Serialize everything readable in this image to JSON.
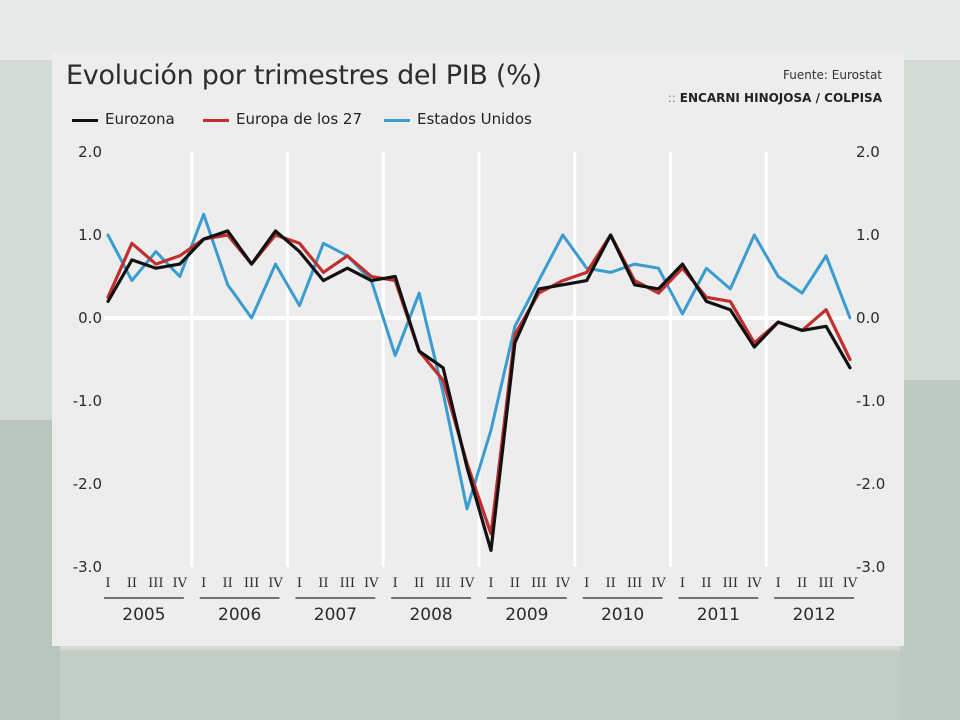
{
  "header": {
    "title": "Evolución por trimestres del PIB (%)",
    "source": "Fuente: Eurostat",
    "credit_prefix": "::",
    "credit": "ENCARNI HINOJOSA / COLPISA"
  },
  "chart_data": {
    "type": "line",
    "title": "Evolución por trimestres del PIB (%)",
    "xlabel": "",
    "ylabel": "",
    "ylim": [
      -3.0,
      2.0
    ],
    "yticks": [
      "2.0",
      "1.0",
      "0.0",
      "-1.0",
      "-2.0",
      "-3.0"
    ],
    "y_axis_both_sides": true,
    "grid": "vertical lines between years",
    "legend_position": "top-left",
    "quarter_labels": [
      "I",
      "II",
      "III",
      "IV"
    ],
    "years": [
      "2005",
      "2006",
      "2007",
      "2008",
      "2009",
      "2010",
      "2011",
      "2012"
    ],
    "series": [
      {
        "name": "Eurozona",
        "color": "#111111",
        "values": [
          0.2,
          0.7,
          0.6,
          0.65,
          0.95,
          1.05,
          0.65,
          1.05,
          0.8,
          0.45,
          0.6,
          0.45,
          0.5,
          -0.4,
          -0.6,
          -1.8,
          -2.8,
          -0.3,
          0.35,
          0.4,
          0.45,
          1.0,
          0.4,
          0.35,
          0.65,
          0.2,
          0.1,
          -0.35,
          -0.05,
          -0.15,
          -0.1,
          -0.6
        ]
      },
      {
        "name": "Europa de los 27",
        "color": "#c0302e",
        "values": [
          0.25,
          0.9,
          0.65,
          0.75,
          0.95,
          1.0,
          0.65,
          1.0,
          0.9,
          0.55,
          0.75,
          0.5,
          0.45,
          -0.4,
          -0.75,
          -1.75,
          -2.6,
          -0.2,
          0.3,
          0.45,
          0.55,
          1.0,
          0.45,
          0.3,
          0.6,
          0.25,
          0.2,
          -0.3,
          -0.05,
          -0.15,
          0.1,
          -0.5
        ]
      },
      {
        "name": "Estados Unidos",
        "color": "#3a9ccf",
        "values": [
          1.0,
          0.45,
          0.8,
          0.5,
          1.25,
          0.4,
          0.0,
          0.65,
          0.15,
          0.9,
          0.75,
          0.45,
          -0.45,
          0.3,
          -0.9,
          -2.3,
          -1.35,
          -0.1,
          0.45,
          1.0,
          0.6,
          0.55,
          0.65,
          0.6,
          0.05,
          0.6,
          0.35,
          1.0,
          0.5,
          0.3,
          0.75,
          0.0
        ]
      }
    ]
  },
  "colors": {
    "card": "#ededed",
    "grid": "#ffffff",
    "text": "#2b2b2b"
  }
}
